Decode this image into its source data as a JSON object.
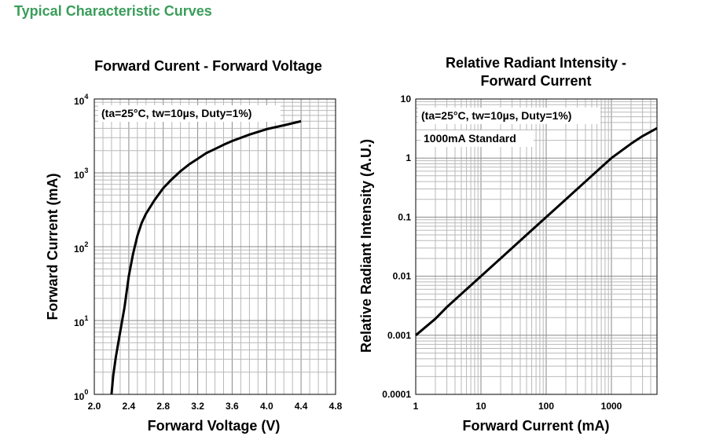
{
  "heading": "Typical Characteristic Curves",
  "accent_color": "#3a9d5a",
  "chart_data": [
    {
      "type": "line",
      "title": "Forward Curent - Forward Voltage",
      "xlabel": "Forward Voltage (V)",
      "ylabel": "Forward Current (mA)",
      "xscale": "linear",
      "yscale": "log",
      "xlim": [
        2.0,
        4.8
      ],
      "ylim": [
        1,
        10000
      ],
      "xticks": [
        "2.0",
        "2.4",
        "2.8",
        "3.2",
        "3.6",
        "4.0",
        "4.4",
        "4.8"
      ],
      "yticks": [
        {
          "base": "10",
          "exp": "0"
        },
        {
          "base": "10",
          "exp": "1"
        },
        {
          "base": "10",
          "exp": "2"
        },
        {
          "base": "10",
          "exp": "3"
        },
        {
          "base": "10",
          "exp": "4"
        }
      ],
      "grid": true,
      "annotations": [
        "(ta=25°C, tw=10µs, Duty=1%)"
      ],
      "series": [
        {
          "x": [
            2.2,
            2.22,
            2.25,
            2.3,
            2.35,
            2.4,
            2.45,
            2.5,
            2.55,
            2.6,
            2.7,
            2.8,
            2.9,
            3.0,
            3.1,
            3.2,
            3.3,
            3.4,
            3.5,
            3.6,
            3.8,
            4.0,
            4.2,
            4.4
          ],
          "y": [
            1,
            1.8,
            3.2,
            7,
            15,
            40,
            80,
            140,
            210,
            280,
            430,
            620,
            820,
            1050,
            1300,
            1550,
            1850,
            2100,
            2400,
            2700,
            3300,
            3900,
            4400,
            5000
          ]
        }
      ]
    },
    {
      "type": "line",
      "title": "Relative Radiant Intensity -\nForward Current",
      "xlabel": "Forward Current (mA)",
      "ylabel": "Relative Radiant Intensity (A.U.)",
      "xscale": "log",
      "yscale": "log",
      "xlim": [
        1,
        5000
      ],
      "ylim": [
        0.0001,
        10
      ],
      "xticks": [
        "1",
        "10",
        "100",
        "1000"
      ],
      "yticks": [
        "0.0001",
        "0.001",
        "0.01",
        "0.1",
        "1",
        "10"
      ],
      "grid": true,
      "annotations": [
        "(ta=25°C, tw=10µs, Duty=1%)",
        "1000mA Standard"
      ],
      "series": [
        {
          "x": [
            1,
            2,
            3,
            5,
            10,
            20,
            50,
            100,
            200,
            500,
            1000,
            2000,
            3000,
            5000
          ],
          "y": [
            0.001,
            0.0019,
            0.003,
            0.005,
            0.01,
            0.02,
            0.05,
            0.1,
            0.2,
            0.5,
            1,
            1.75,
            2.35,
            3.2
          ]
        }
      ]
    }
  ]
}
